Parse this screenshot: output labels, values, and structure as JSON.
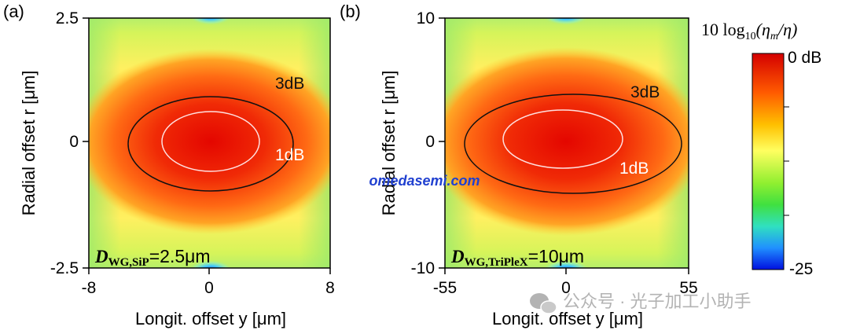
{
  "chart_data": [
    {
      "type": "heatmap",
      "panel_label": "(a)",
      "xlabel": "Longit. offset y [μm]",
      "ylabel": "Radial offset r [μm]",
      "xlim": [
        -8,
        8
      ],
      "ylim": [
        -2.5,
        2.5
      ],
      "x_ticks": [
        "-8",
        "0",
        "8"
      ],
      "y_ticks": [
        "-2.5",
        "0",
        "2.5"
      ],
      "contours": [
        {
          "label": "3dB",
          "level_db": -3,
          "y_halfwidth": 6.6,
          "r_halfwidth": 1.05
        },
        {
          "label": "1dB",
          "level_db": -1,
          "y_halfwidth": 3.8,
          "r_halfwidth": 0.65
        }
      ],
      "annotation": {
        "symbol": "D",
        "subscript": "WG,SiP",
        "text": "=2.5μm"
      }
    },
    {
      "type": "heatmap",
      "panel_label": "(b)",
      "xlabel": "Longit. offset y [μm]",
      "ylabel": "Radial offset r [μm]",
      "xlim": [
        -55,
        55
      ],
      "ylim": [
        -10,
        10
      ],
      "x_ticks": [
        "-55",
        "0",
        "55"
      ],
      "y_ticks": [
        "-10",
        "0",
        "10"
      ],
      "contours": [
        {
          "label": "3dB",
          "level_db": -3,
          "y_halfwidth": 45,
          "r_halfwidth": 4.0
        },
        {
          "label": "1dB",
          "level_db": -1,
          "y_halfwidth": 26,
          "r_halfwidth": 2.6
        }
      ],
      "annotation": {
        "symbol": "D",
        "subscript": "WG,TriPleX",
        "text": "=10μm"
      }
    }
  ],
  "colorbar": {
    "title_main": "10 log",
    "title_sub": "10",
    "title_tail": "(η",
    "title_m": "m",
    "title_end": "/η)",
    "max_label": "0 dB",
    "min_label": "-25",
    "range_db": [
      -25,
      0
    ]
  },
  "watermarks": {
    "center": "omedasemi.com",
    "bottom": "公众号 · 光子加工小助手"
  }
}
